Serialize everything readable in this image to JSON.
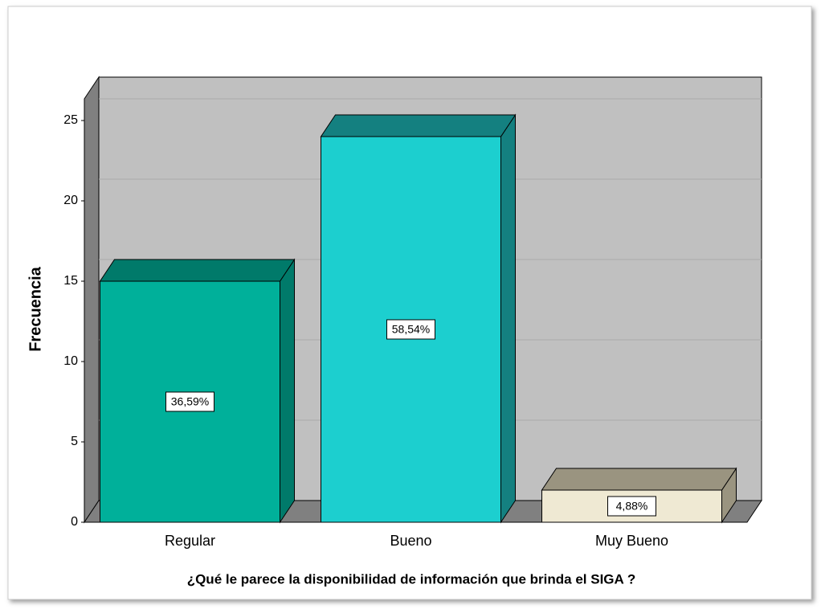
{
  "chart_data": {
    "type": "bar3d",
    "x_label": "¿Qué le parece la disponibilidad de información que brinda el SIGA ?",
    "y_label": "Frecuencia",
    "categories": [
      "Regular",
      "Bueno",
      "Muy  Bueno"
    ],
    "values": [
      15,
      24,
      2
    ],
    "colors": [
      "#00b09a",
      "#1ccfcf",
      "#efe9d3"
    ],
    "top_colors": [
      "#007a6a",
      "#148080",
      "#9a9480"
    ],
    "percent_values": [
      36.59,
      58.54,
      4.88
    ],
    "percent_labels": [
      "36,59%",
      "58,54%",
      "4,88%"
    ],
    "ylim": [
      0,
      26.35
    ],
    "yticks": [
      0,
      5,
      10,
      15,
      20,
      25
    ],
    "grid": true
  }
}
